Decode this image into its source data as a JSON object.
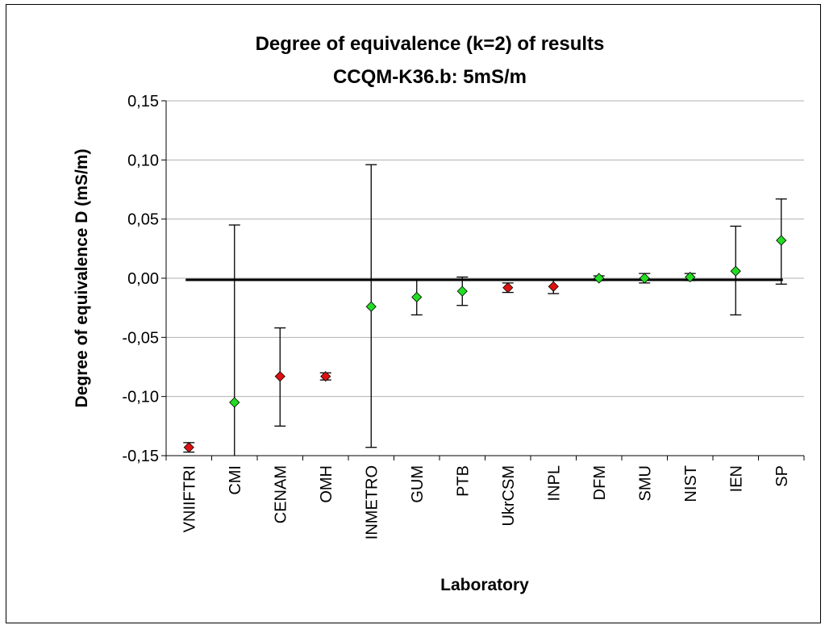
{
  "chart_data": {
    "type": "scatter",
    "title": "Degree of equivalence (k=2) of results",
    "subtitle": "CCQM-K36.b: 5mS/m",
    "xlabel": "Laboratory",
    "ylabel": "Degree of equivalence D (mS/m)",
    "ylim": [
      -0.15,
      0.15
    ],
    "yticks": [
      -0.15,
      -0.1,
      -0.05,
      0.0,
      0.05,
      0.1,
      0.15
    ],
    "ytick_labels": [
      "-0,15",
      "-0,10",
      "-0,05",
      "0,00",
      "0,05",
      "0,10",
      "0,15"
    ],
    "grid": true,
    "legend": "none",
    "reference_line": 0,
    "colors": {
      "consistent": "#22dd22",
      "inconsistent": "#dd1111",
      "axis": "#000000",
      "grid": "#b0b0b0"
    },
    "categories": [
      "VNIIFTRI",
      "CMI",
      "CENAM",
      "OMH",
      "INMETRO",
      "GUM",
      "PTB",
      "UkrCSM",
      "INPL",
      "DFM",
      "SMU",
      "NIST",
      "IEN",
      "SP"
    ],
    "values": [
      -0.143,
      -0.105,
      -0.083,
      -0.083,
      -0.024,
      -0.016,
      -0.011,
      -0.008,
      -0.007,
      0.0,
      0.0,
      0.001,
      0.006,
      0.032
    ],
    "upper": [
      -0.139,
      0.045,
      -0.042,
      -0.08,
      0.096,
      -0.001,
      0.001,
      -0.004,
      -0.001,
      0.002,
      0.004,
      0.004,
      0.044,
      0.067
    ],
    "lower": [
      -0.147,
      -0.15,
      -0.125,
      -0.086,
      -0.143,
      -0.031,
      -0.023,
      -0.012,
      -0.013,
      -0.002,
      -0.004,
      -0.002,
      -0.031,
      -0.005
    ],
    "status": [
      "inconsistent",
      "consistent",
      "inconsistent",
      "inconsistent",
      "consistent",
      "consistent",
      "consistent",
      "inconsistent",
      "inconsistent",
      "consistent",
      "consistent",
      "consistent",
      "consistent",
      "consistent"
    ]
  }
}
